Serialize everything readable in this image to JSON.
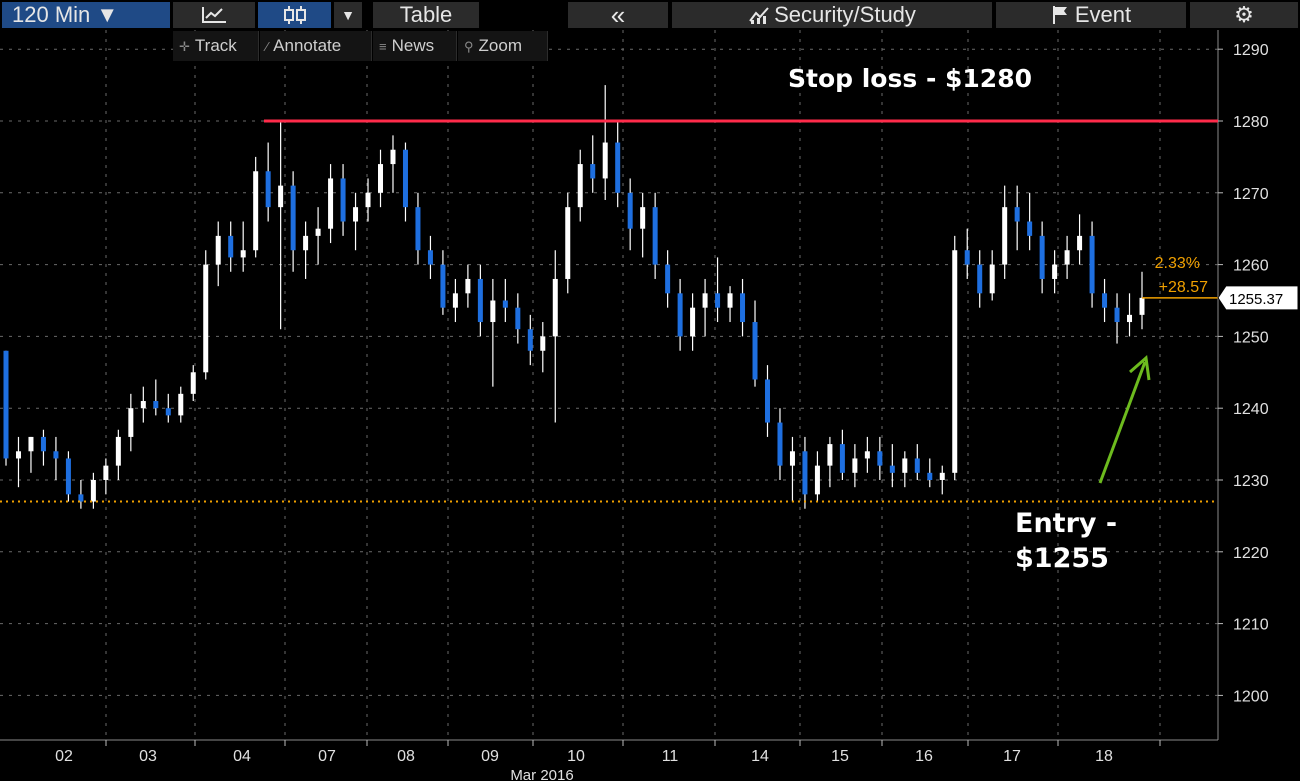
{
  "toolbar": {
    "interval_label": "120 Min ▼",
    "chart_type_icon": "line-chart-icon",
    "candle_icon": "candlestick-icon",
    "dropdown_arrow": "▼",
    "table_label": "Table",
    "collapse_label": "«",
    "security_study_label": "Security/Study",
    "event_label": "Event",
    "settings_icon": "⚙"
  },
  "subtoolbar": {
    "track_label": "Track",
    "annotate_label": "Annotate",
    "news_label": "News",
    "zoom_label": "Zoom"
  },
  "annotations": {
    "stop_loss": "Stop loss - $1280",
    "entry_line1": "Entry -",
    "entry_line2": "$1255"
  },
  "price_tag": {
    "last": "1255.37",
    "pct": "2.33%",
    "change": "+28.57"
  },
  "colors": {
    "background": "#000000",
    "up_candle": "#ffffff",
    "down_candle": "#1e6fe0",
    "stop_line": "#ff2b4a",
    "entry_line": "#f0a000",
    "arrow": "#6dbb1e",
    "grid": "#6a6a6a",
    "toolbar_blue": "#1f4a86"
  },
  "chart_data": {
    "type": "candlestick",
    "x_axis_label": "Mar 2016",
    "x_ticks": [
      "02",
      "03",
      "04",
      "07",
      "08",
      "09",
      "10",
      "11",
      "14",
      "15",
      "16",
      "17",
      "18"
    ],
    "y_ticks": [
      1200,
      1210,
      1220,
      1230,
      1240,
      1250,
      1260,
      1270,
      1280,
      1290
    ],
    "ylim": [
      1195,
      1292
    ],
    "grid": true,
    "last_price": 1255.37,
    "stop_loss_level": 1280,
    "horizontal_dotted_level": 1227,
    "candles": [
      [
        1248,
        1248,
        1232,
        1233
      ],
      [
        1233,
        1236,
        1229,
        1234
      ],
      [
        1234,
        1236,
        1231,
        1236
      ],
      [
        1236,
        1237,
        1232,
        1234
      ],
      [
        1234,
        1236,
        1230,
        1233
      ],
      [
        1233,
        1234,
        1227,
        1228
      ],
      [
        1228,
        1230,
        1226,
        1227
      ],
      [
        1227,
        1231,
        1226,
        1230
      ],
      [
        1230,
        1233,
        1228,
        1232
      ],
      [
        1232,
        1237,
        1230,
        1236
      ],
      [
        1236,
        1242,
        1234,
        1240
      ],
      [
        1240,
        1243,
        1238,
        1241
      ],
      [
        1241,
        1244,
        1239,
        1240
      ],
      [
        1240,
        1242,
        1238,
        1239
      ],
      [
        1239,
        1243,
        1238,
        1242
      ],
      [
        1242,
        1246,
        1241,
        1245
      ],
      [
        1245,
        1262,
        1244,
        1260
      ],
      [
        1260,
        1266,
        1257,
        1264
      ],
      [
        1264,
        1266,
        1259,
        1261
      ],
      [
        1261,
        1266,
        1259,
        1262
      ],
      [
        1262,
        1275,
        1261,
        1273
      ],
      [
        1273,
        1277,
        1266,
        1268
      ],
      [
        1268,
        1280,
        1251,
        1271
      ],
      [
        1271,
        1273,
        1259,
        1262
      ],
      [
        1262,
        1266,
        1258,
        1264
      ],
      [
        1264,
        1268,
        1260,
        1265
      ],
      [
        1265,
        1274,
        1263,
        1272
      ],
      [
        1272,
        1274,
        1264,
        1266
      ],
      [
        1266,
        1270,
        1262,
        1268
      ],
      [
        1268,
        1272,
        1266,
        1270
      ],
      [
        1270,
        1276,
        1268,
        1274
      ],
      [
        1274,
        1278,
        1270,
        1276
      ],
      [
        1276,
        1277,
        1266,
        1268
      ],
      [
        1268,
        1270,
        1260,
        1262
      ],
      [
        1262,
        1264,
        1258,
        1260
      ],
      [
        1260,
        1262,
        1253,
        1254
      ],
      [
        1254,
        1258,
        1252,
        1256
      ],
      [
        1256,
        1260,
        1254,
        1258
      ],
      [
        1258,
        1260,
        1250,
        1252
      ],
      [
        1252,
        1258,
        1243,
        1255
      ],
      [
        1255,
        1258,
        1252,
        1254
      ],
      [
        1254,
        1256,
        1249,
        1251
      ],
      [
        1251,
        1253,
        1246,
        1248
      ],
      [
        1248,
        1252,
        1245,
        1250
      ],
      [
        1250,
        1262,
        1238,
        1258
      ],
      [
        1258,
        1270,
        1256,
        1268
      ],
      [
        1268,
        1276,
        1266,
        1274
      ],
      [
        1274,
        1278,
        1270,
        1272
      ],
      [
        1272,
        1285,
        1269,
        1277
      ],
      [
        1277,
        1280,
        1268,
        1270
      ],
      [
        1270,
        1272,
        1262,
        1265
      ],
      [
        1265,
        1270,
        1261,
        1268
      ],
      [
        1268,
        1270,
        1258,
        1260
      ],
      [
        1260,
        1262,
        1254,
        1256
      ],
      [
        1256,
        1258,
        1248,
        1250
      ],
      [
        1250,
        1256,
        1248,
        1254
      ],
      [
        1254,
        1258,
        1250,
        1256
      ],
      [
        1256,
        1261,
        1252,
        1254
      ],
      [
        1254,
        1257,
        1252,
        1256
      ],
      [
        1256,
        1258,
        1250,
        1252
      ],
      [
        1252,
        1255,
        1243,
        1244
      ],
      [
        1244,
        1246,
        1236,
        1238
      ],
      [
        1238,
        1240,
        1230,
        1232
      ],
      [
        1232,
        1236,
        1227,
        1234
      ],
      [
        1234,
        1236,
        1226,
        1228
      ],
      [
        1228,
        1234,
        1227,
        1232
      ],
      [
        1232,
        1236,
        1229,
        1235
      ],
      [
        1235,
        1237,
        1230,
        1231
      ],
      [
        1231,
        1235,
        1229,
        1233
      ],
      [
        1233,
        1236,
        1231,
        1234
      ],
      [
        1234,
        1236,
        1230,
        1232
      ],
      [
        1232,
        1235,
        1229,
        1231
      ],
      [
        1231,
        1234,
        1229,
        1233
      ],
      [
        1233,
        1235,
        1230,
        1231
      ],
      [
        1231,
        1233,
        1229,
        1230
      ],
      [
        1230,
        1232,
        1228,
        1231
      ],
      [
        1231,
        1264,
        1230,
        1262
      ],
      [
        1262,
        1265,
        1258,
        1260
      ],
      [
        1260,
        1262,
        1254,
        1256
      ],
      [
        1256,
        1262,
        1255,
        1260
      ],
      [
        1260,
        1271,
        1258,
        1268
      ],
      [
        1268,
        1271,
        1262,
        1266
      ],
      [
        1266,
        1270,
        1262,
        1264
      ],
      [
        1264,
        1266,
        1256,
        1258
      ],
      [
        1258,
        1262,
        1256,
        1260
      ],
      [
        1260,
        1264,
        1258,
        1262
      ],
      [
        1262,
        1267,
        1260,
        1264
      ],
      [
        1264,
        1266,
        1254,
        1256
      ],
      [
        1256,
        1258,
        1252,
        1254
      ],
      [
        1254,
        1256,
        1249,
        1252
      ],
      [
        1252,
        1256,
        1250,
        1253
      ],
      [
        1253,
        1259,
        1251,
        1255.37
      ]
    ]
  }
}
